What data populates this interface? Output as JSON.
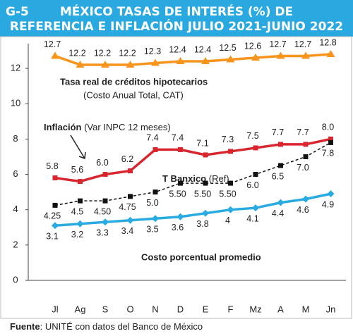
{
  "chart_data": {
    "type": "line",
    "code": "G-5",
    "title": [
      "MÉXICO TASAS DE INTERÉS (%) DE",
      "REFERENCIA E INFLACIÓN JULIO 2021-JUNIO 2022"
    ],
    "categories": [
      "Jl",
      "Ag",
      "S",
      "O",
      "N",
      "D",
      "E",
      "F",
      "Mz",
      "A",
      "M",
      "Jn"
    ],
    "series": [
      {
        "name": "Tasa real de créditos hipotecarios",
        "color": "#f7941d",
        "marker": "triangle",
        "label_side": "above",
        "values": [
          12.7,
          12.2,
          12.2,
          12.2,
          12.3,
          12.4,
          12.4,
          12.5,
          12.6,
          12.7,
          12.7,
          12.8
        ]
      },
      {
        "name": "Inflación",
        "color": "#d7262e",
        "marker": "square",
        "label_side": "above",
        "values": [
          5.8,
          5.6,
          6.0,
          6.2,
          7.4,
          7.4,
          7.1,
          7.3,
          7.5,
          7.7,
          7.7,
          8.0
        ],
        "value_labels": [
          "5.8",
          "5.6",
          "6.0",
          "6.2",
          "7.4",
          "7.4",
          "7.1",
          "7.3",
          "7.5",
          "7.7",
          "7.7",
          "8.0"
        ]
      },
      {
        "name": "T Banxico",
        "color": "#111111",
        "marker": "square",
        "dashed": true,
        "label_side": "below",
        "values": [
          4.25,
          4.5,
          4.5,
          4.75,
          5.0,
          5.5,
          5.5,
          5.5,
          6.0,
          6.5,
          7.0,
          7.8
        ],
        "value_labels": [
          "4.25",
          "4.5",
          "4.50",
          "4.75",
          "5.0",
          "5.50",
          "5.50",
          "5.50",
          "6.0",
          "6.5",
          "7.0",
          "7.8"
        ]
      },
      {
        "name": "Costo porcentual promedio",
        "color": "#29abe2",
        "marker": "diamond",
        "label_side": "below",
        "values": [
          3.1,
          3.2,
          3.3,
          3.4,
          3.5,
          3.6,
          3.8,
          4.0,
          4.1,
          4.4,
          4.6,
          4.9
        ]
      }
    ],
    "ylim": [
      0,
      13
    ],
    "yticks": [
      0,
      2,
      4,
      6,
      8,
      10,
      12
    ],
    "annotations": [
      "Tasa real de créditos hipotecarios",
      "(Costo Anual Total, CAT)",
      "Inflación",
      "(Var INPC 12 meses)",
      "T Banxico",
      "(Ref)",
      "Costo porcentual promedio"
    ],
    "source": [
      "Fuente",
      ": UNITÉ con datos del Banco de México"
    ]
  }
}
